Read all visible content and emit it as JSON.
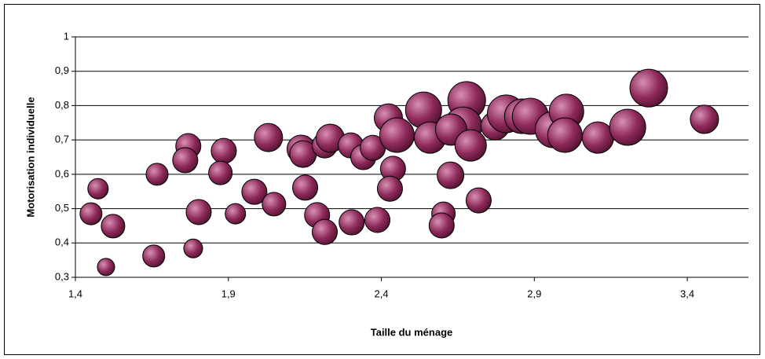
{
  "chart_data": {
    "type": "bubble",
    "xlabel": "Taille du ménage",
    "ylabel": "Motorisation individuelle",
    "color": "#8e2a5a",
    "grid": true,
    "xlim": [
      1.4,
      3.6
    ],
    "ylim": [
      0.3,
      1
    ],
    "xticks": [
      {
        "value": 1.4,
        "label": "1,4"
      },
      {
        "value": 1.9,
        "label": "1,9"
      },
      {
        "value": 2.4,
        "label": "2,4"
      },
      {
        "value": 2.9,
        "label": "2,9"
      },
      {
        "value": 3.4,
        "label": "3,4"
      }
    ],
    "yticks": [
      {
        "value": 0.3,
        "label": "0,3"
      },
      {
        "value": 0.4,
        "label": "0,4"
      },
      {
        "value": 0.5,
        "label": "0,5"
      },
      {
        "value": 0.6,
        "label": "0,6"
      },
      {
        "value": 0.7,
        "label": "0,7"
      },
      {
        "value": 0.8,
        "label": "0,8"
      },
      {
        "value": 0.9,
        "label": "0,9"
      },
      1
    ],
    "x": [
      1.451,
      1.474,
      1.523,
      1.5,
      1.656,
      1.667,
      1.785,
      1.803,
      1.769,
      1.759,
      1.885,
      1.874,
      1.923,
      1.985,
      2.049,
      2.031,
      2.138,
      2.144,
      2.151,
      2.19,
      2.215,
      2.215,
      2.233,
      2.3,
      2.303,
      2.341,
      2.372,
      2.387,
      2.423,
      2.438,
      2.428,
      2.451,
      2.538,
      2.559,
      2.679,
      2.667,
      2.628,
      2.626,
      2.603,
      2.597,
      2.718,
      2.692,
      2.772,
      2.808,
      2.859,
      2.887,
      2.962,
      3.005,
      3.0,
      3.108,
      3.205,
      3.274,
      3.456
    ],
    "values": [
      0.485,
      0.558,
      0.449,
      0.33,
      0.362,
      0.6,
      0.384,
      0.49,
      0.682,
      0.641,
      0.668,
      0.604,
      0.485,
      0.549,
      0.513,
      0.707,
      0.673,
      0.659,
      0.561,
      0.481,
      0.432,
      0.684,
      0.705,
      0.684,
      0.46,
      0.65,
      0.677,
      0.467,
      0.764,
      0.616,
      0.558,
      0.714,
      0.787,
      0.707,
      0.815,
      0.741,
      0.73,
      0.597,
      0.485,
      0.451,
      0.524,
      0.684,
      0.741,
      0.776,
      0.769,
      0.769,
      0.73,
      0.783,
      0.714,
      0.707,
      0.737,
      0.851,
      0.76
    ],
    "sizes": [
      14,
      13,
      15,
      11,
      14,
      14,
      12,
      16,
      16,
      16,
      16,
      15,
      13,
      16,
      15,
      18,
      18,
      17,
      16,
      16,
      16,
      16,
      18,
      16,
      16,
      16,
      16,
      16,
      18,
      16,
      16,
      22,
      23,
      20,
      24,
      24,
      20,
      17,
      15,
      16,
      16,
      20,
      18,
      24,
      22,
      23,
      23,
      22,
      22,
      20,
      23,
      24,
      18
    ]
  }
}
